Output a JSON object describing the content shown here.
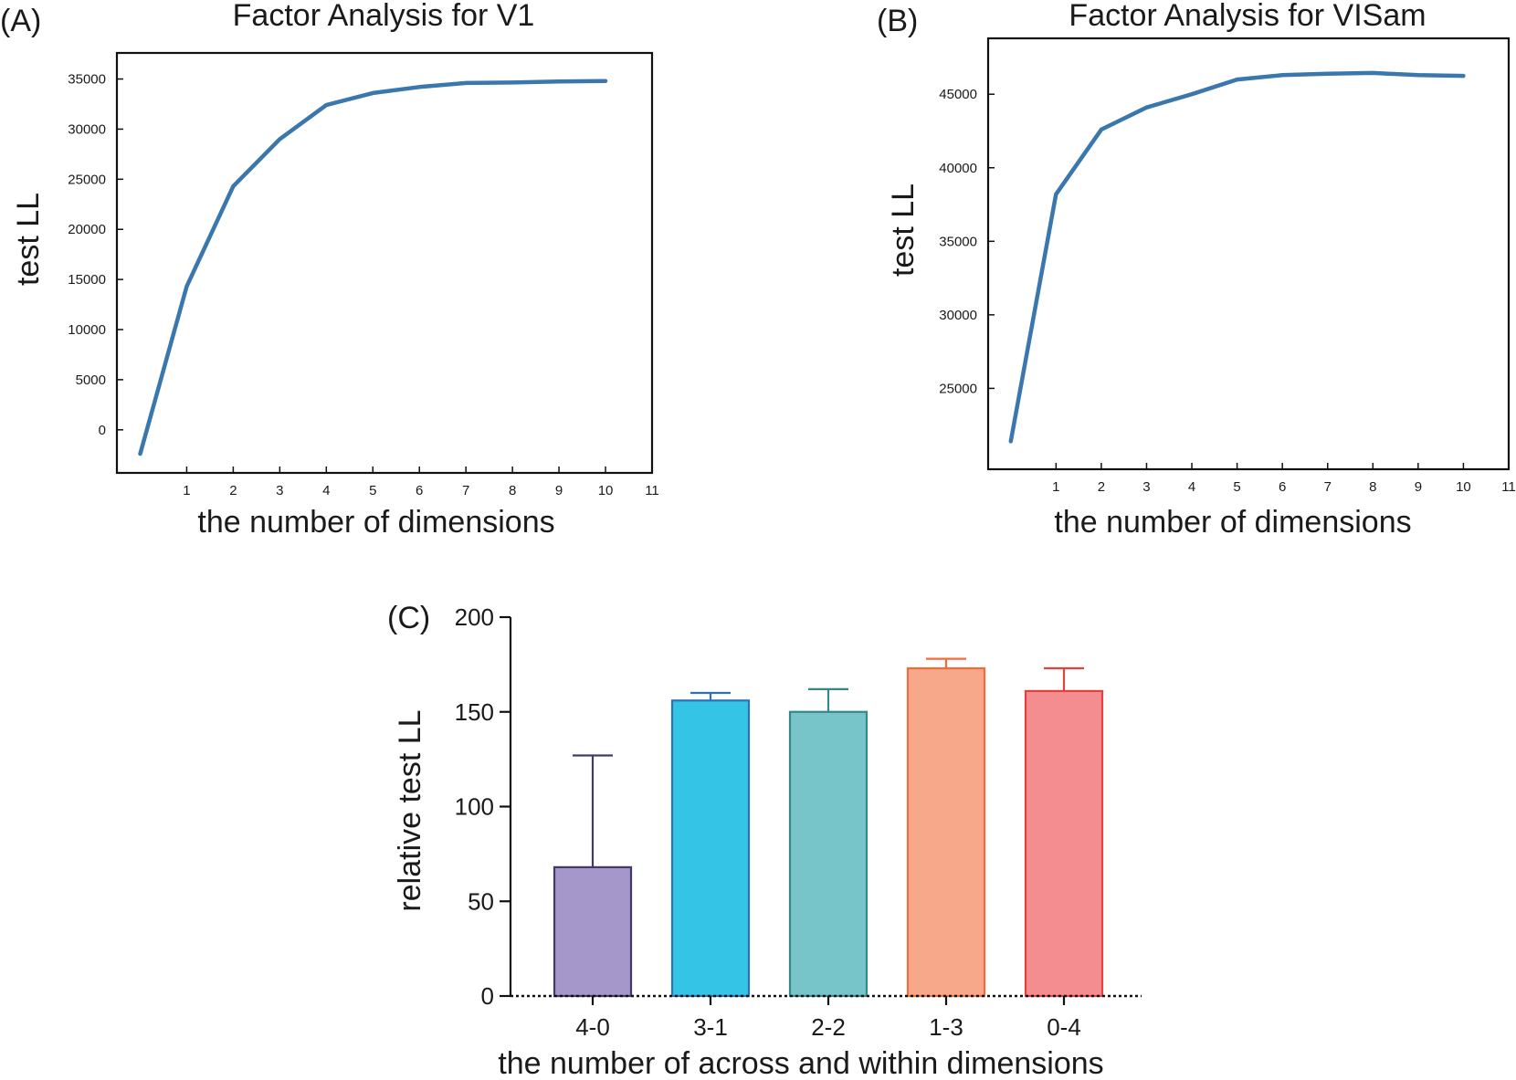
{
  "panels": {
    "a": {
      "label": "(A)",
      "chart_data": {
        "type": "line",
        "title": "Factor Analysis for V1",
        "xlabel": "the number of dimensions",
        "ylabel": "test LL",
        "x": [
          0,
          1,
          2,
          3,
          4,
          5,
          6,
          7,
          8,
          9,
          10
        ],
        "series": [
          {
            "values": [
              -2400,
              14300,
              24300,
              29000,
              32400,
              33600,
              34200,
              34600,
              34650,
              34750,
              34800
            ]
          }
        ],
        "xticks": [
          1,
          2,
          3,
          4,
          5,
          6,
          7,
          8,
          9,
          10,
          11
        ],
        "yticks": [
          0,
          5000,
          10000,
          15000,
          20000,
          25000,
          30000,
          35000
        ],
        "xlim": [
          -0.5,
          11
        ],
        "ylim": [
          -4300,
          37600
        ],
        "grid": false,
        "line_color": "#3a77ac"
      }
    },
    "b": {
      "label": "(B)",
      "chart_data": {
        "type": "line",
        "title": "Factor Analysis for VISam",
        "xlabel": "the number of dimensions",
        "ylabel": "test LL",
        "x": [
          0,
          1,
          2,
          3,
          4,
          5,
          6,
          7,
          8,
          9,
          10
        ],
        "series": [
          {
            "values": [
              21400,
              38200,
              42600,
              44100,
              45000,
              46000,
              46300,
              46400,
              46450,
              46300,
              46250
            ]
          }
        ],
        "xticks": [
          1,
          2,
          3,
          4,
          5,
          6,
          7,
          8,
          9,
          10,
          11
        ],
        "yticks": [
          25000,
          30000,
          35000,
          40000,
          45000
        ],
        "xlim": [
          -0.5,
          11
        ],
        "ylim": [
          19500,
          48800
        ],
        "grid": false,
        "line_color": "#3a77ac"
      }
    },
    "c": {
      "label": "(C)",
      "chart_data": {
        "type": "bar",
        "xlabel": "the number of across and within dimensions",
        "ylabel": "relative test LL",
        "categories": [
          "4-0",
          "3-1",
          "2-2",
          "1-3",
          "0-4"
        ],
        "values": [
          68,
          156,
          150,
          173,
          161
        ],
        "error_upper": [
          127,
          160,
          162,
          178,
          173
        ],
        "yticks": [
          0,
          50,
          100,
          150,
          200
        ],
        "ylim": [
          0,
          200
        ],
        "grid": false,
        "fill_colors": [
          "#a597c9",
          "#33c4e6",
          "#78c5c9",
          "#f7a88a",
          "#f48d8f"
        ],
        "edge_colors": [
          "#453a63",
          "#2f72b4",
          "#34878c",
          "#f26b3a",
          "#e2413d"
        ]
      }
    }
  }
}
